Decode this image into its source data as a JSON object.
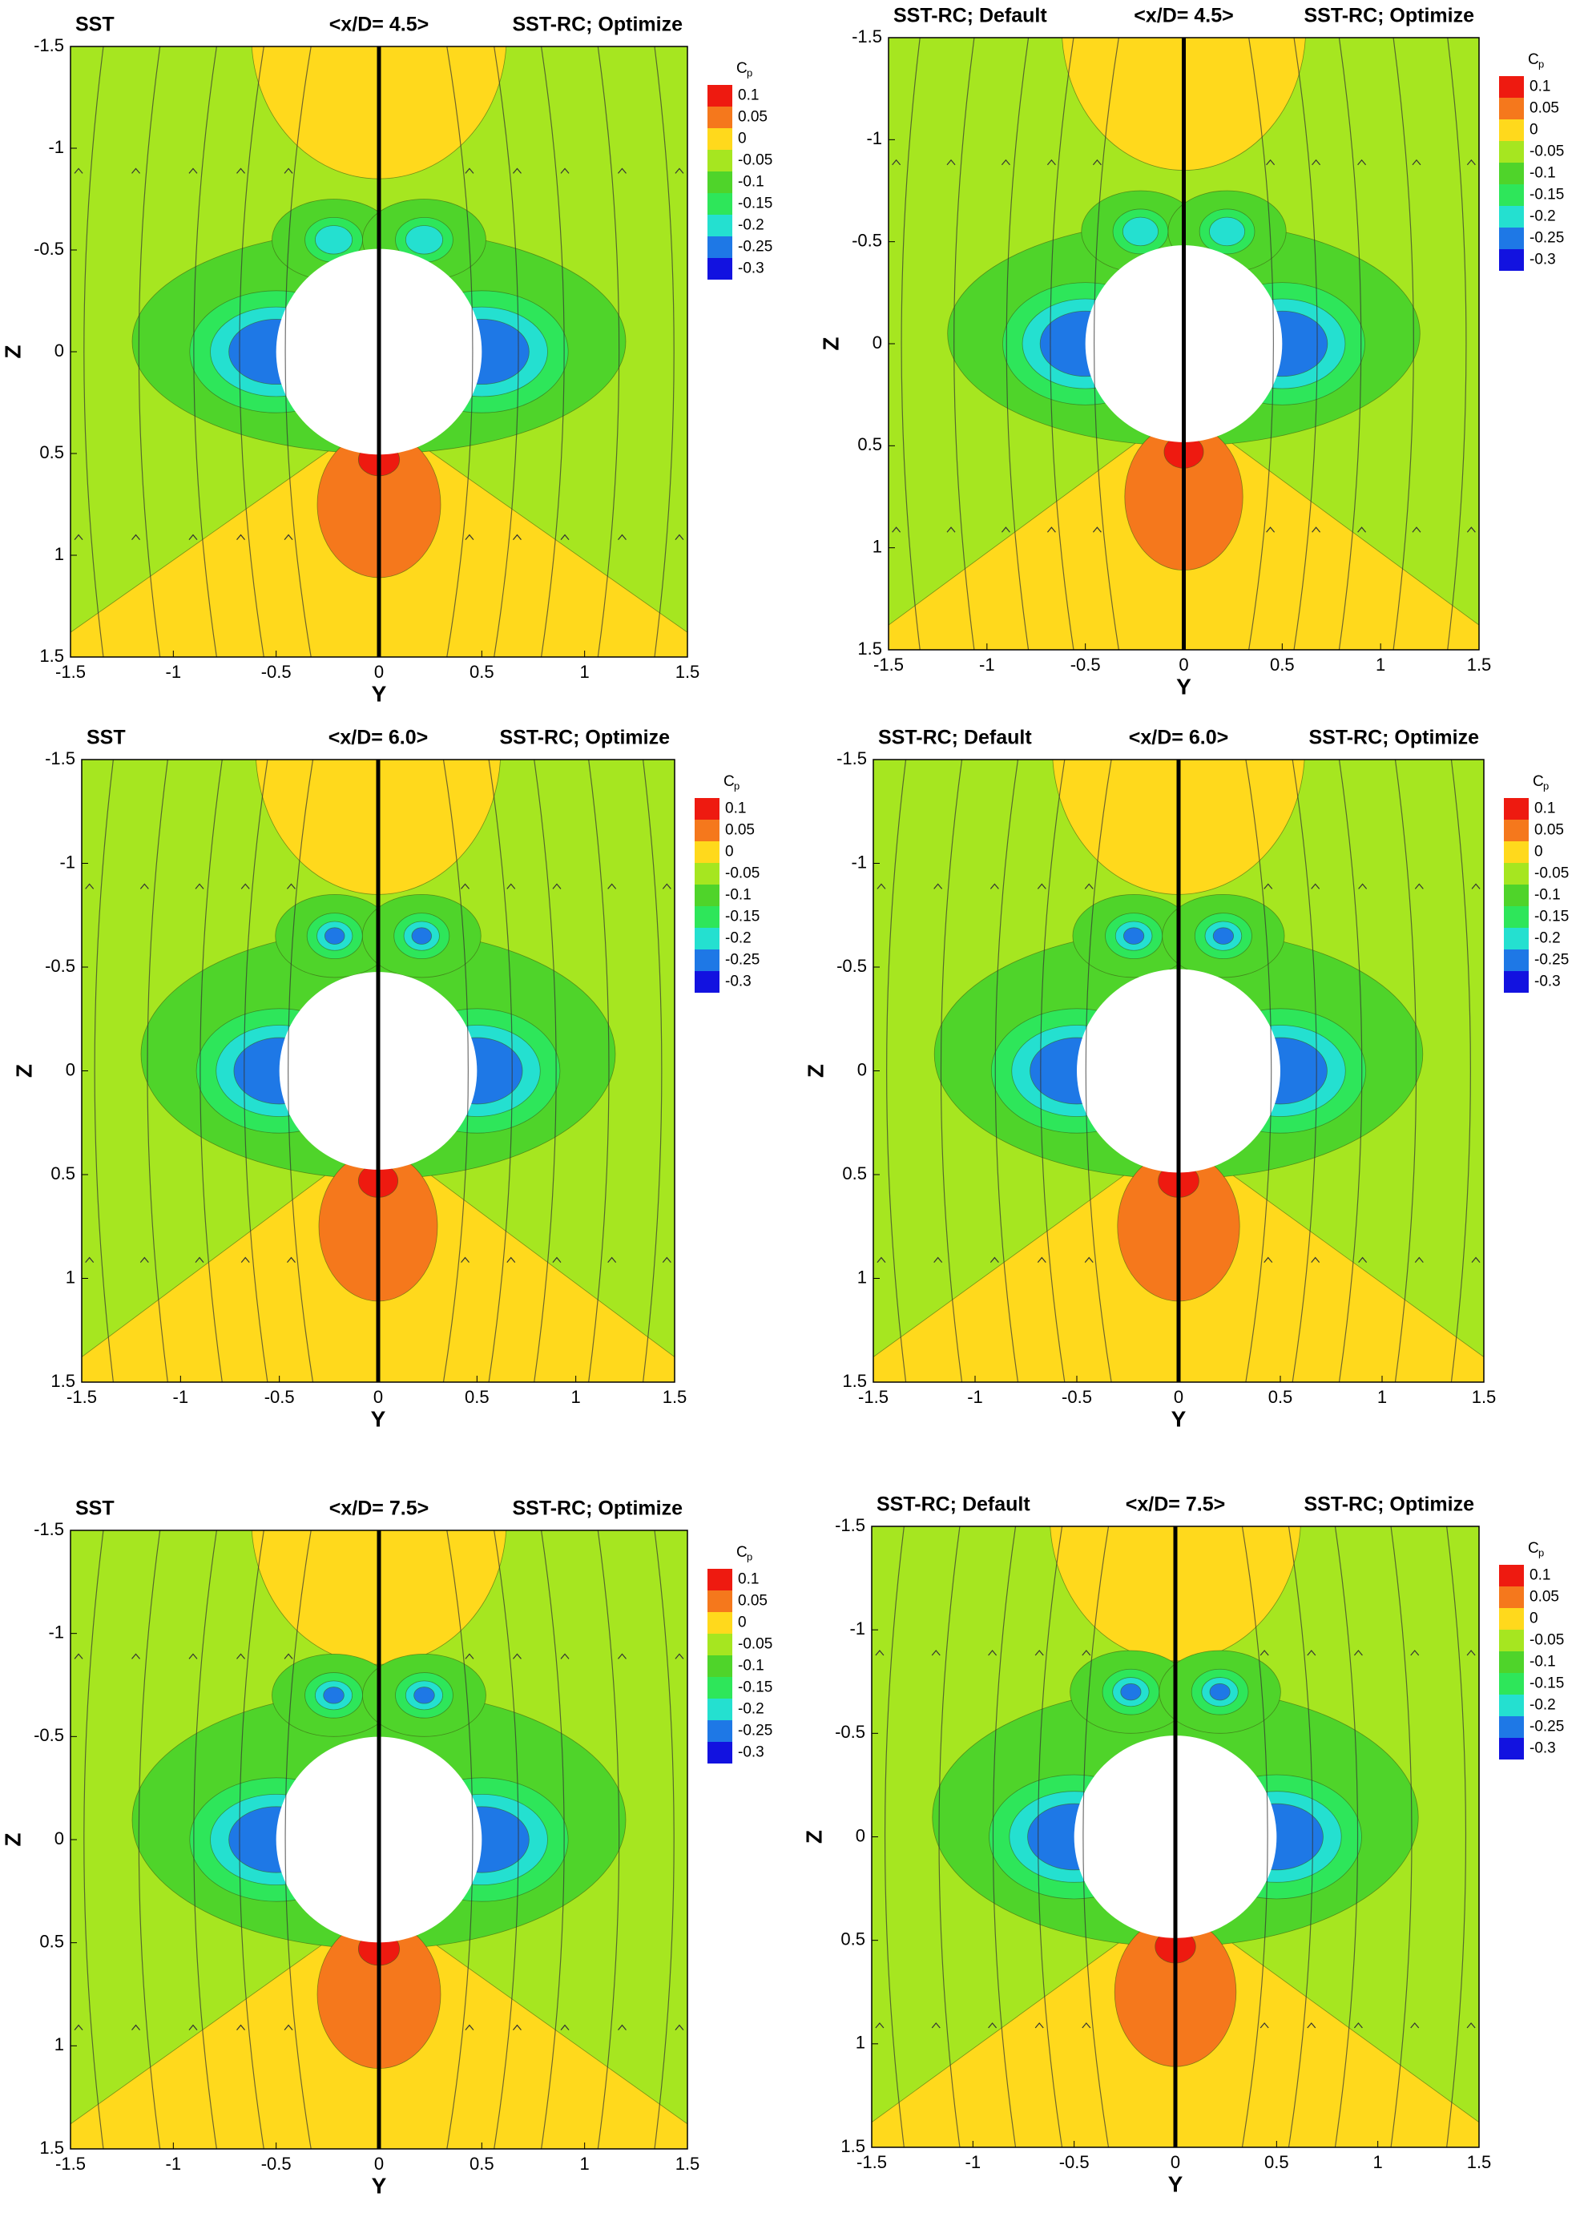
{
  "chart_data": [
    {
      "type": "contour",
      "title_left": "SST",
      "title": "<x/D= 4.5>",
      "title_right": "SST-RC; Optimize",
      "xlabel": "Y",
      "ylabel": "Z",
      "xlim": [
        -1.5,
        1.5
      ],
      "ylim": [
        1.5,
        -1.5
      ],
      "xticks": [
        -1.5,
        -1,
        -0.5,
        0,
        0.5,
        1,
        1.5
      ],
      "yticks": [
        -1.5,
        -1,
        -0.5,
        0,
        0.5,
        1,
        1.5
      ],
      "colorbar": {
        "label": "C",
        "label_sub": "p",
        "levels": [
          0.1,
          0.05,
          0,
          -0.05,
          -0.1,
          -0.15,
          -0.2,
          -0.25,
          -0.3
        ],
        "colors": [
          "#ee1a10",
          "#f5781c",
          "#ffd91c",
          "#a6e620",
          "#4fd42a",
          "#2ee65a",
          "#24e0d0",
          "#1e78e6",
          "#1212e0"
        ]
      }
    },
    {
      "type": "contour",
      "title_left": "SST-RC; Default",
      "title": "<x/D= 4.5>",
      "title_right": "SST-RC; Optimize",
      "xlabel": "Y",
      "ylabel": "Z",
      "xlim": [
        -1.5,
        1.5
      ],
      "ylim": [
        1.5,
        -1.5
      ],
      "xticks": [
        -1.5,
        -1,
        -0.5,
        0,
        0.5,
        1,
        1.5
      ],
      "yticks": [
        -1.5,
        -1,
        -0.5,
        0,
        0.5,
        1,
        1.5
      ],
      "colorbar": {
        "label": "C",
        "label_sub": "p",
        "levels": [
          0.1,
          0.05,
          0,
          -0.05,
          -0.1,
          -0.15,
          -0.2,
          -0.25,
          -0.3
        ],
        "colors": [
          "#ee1a10",
          "#f5781c",
          "#ffd91c",
          "#a6e620",
          "#4fd42a",
          "#2ee65a",
          "#24e0d0",
          "#1e78e6",
          "#1212e0"
        ]
      }
    },
    {
      "type": "contour",
      "title_left": "SST",
      "title": "<x/D= 6.0>",
      "title_right": "SST-RC; Optimize",
      "xlabel": "Y",
      "ylabel": "Z",
      "xlim": [
        -1.5,
        1.5
      ],
      "ylim": [
        1.5,
        -1.5
      ],
      "xticks": [
        -1.5,
        -1,
        -0.5,
        0,
        0.5,
        1,
        1.5
      ],
      "yticks": [
        -1.5,
        -1,
        -0.5,
        0,
        0.5,
        1,
        1.5
      ],
      "colorbar": {
        "label": "C",
        "label_sub": "p",
        "levels": [
          0.1,
          0.05,
          0,
          -0.05,
          -0.1,
          -0.15,
          -0.2,
          -0.25,
          -0.3
        ],
        "colors": [
          "#ee1a10",
          "#f5781c",
          "#ffd91c",
          "#a6e620",
          "#4fd42a",
          "#2ee65a",
          "#24e0d0",
          "#1e78e6",
          "#1212e0"
        ]
      }
    },
    {
      "type": "contour",
      "title_left": "SST-RC; Default",
      "title": "<x/D= 6.0>",
      "title_right": "SST-RC; Optimize",
      "xlabel": "Y",
      "ylabel": "Z",
      "xlim": [
        -1.5,
        1.5
      ],
      "ylim": [
        1.5,
        -1.5
      ],
      "xticks": [
        -1.5,
        -1,
        -0.5,
        0,
        0.5,
        1,
        1.5
      ],
      "yticks": [
        -1.5,
        -1,
        -0.5,
        0,
        0.5,
        1,
        1.5
      ],
      "colorbar": {
        "label": "C",
        "label_sub": "p",
        "levels": [
          0.1,
          0.05,
          0,
          -0.05,
          -0.1,
          -0.15,
          -0.2,
          -0.25,
          -0.3
        ],
        "colors": [
          "#ee1a10",
          "#f5781c",
          "#ffd91c",
          "#a6e620",
          "#4fd42a",
          "#2ee65a",
          "#24e0d0",
          "#1e78e6",
          "#1212e0"
        ]
      }
    },
    {
      "type": "contour",
      "title_left": "SST",
      "title": "<x/D= 7.5>",
      "title_right": "SST-RC; Optimize",
      "xlabel": "Y",
      "ylabel": "Z",
      "xlim": [
        -1.5,
        1.5
      ],
      "ylim": [
        1.5,
        -1.5
      ],
      "xticks": [
        -1.5,
        -1,
        -0.5,
        0,
        0.5,
        1,
        1.5
      ],
      "yticks": [
        -1.5,
        -1,
        -0.5,
        0,
        0.5,
        1,
        1.5
      ],
      "colorbar": {
        "label": "C",
        "label_sub": "p",
        "levels": [
          0.1,
          0.05,
          0,
          -0.05,
          -0.1,
          -0.15,
          -0.2,
          -0.25,
          -0.3
        ],
        "colors": [
          "#ee1a10",
          "#f5781c",
          "#ffd91c",
          "#a6e620",
          "#4fd42a",
          "#2ee65a",
          "#24e0d0",
          "#1e78e6",
          "#1212e0"
        ]
      }
    },
    {
      "type": "contour",
      "title_left": "SST-RC; Default",
      "title": "<x/D= 7.5>",
      "title_right": "SST-RC; Optimize",
      "xlabel": "Y",
      "ylabel": "Z",
      "xlim": [
        -1.5,
        1.5
      ],
      "ylim": [
        1.5,
        -1.5
      ],
      "xticks": [
        -1.5,
        -1,
        -0.5,
        0,
        0.5,
        1,
        1.5
      ],
      "yticks": [
        -1.5,
        -1,
        -0.5,
        0,
        0.5,
        1,
        1.5
      ],
      "colorbar": {
        "label": "C",
        "label_sub": "p",
        "levels": [
          0.1,
          0.05,
          0,
          -0.05,
          -0.1,
          -0.15,
          -0.2,
          -0.25,
          -0.3
        ],
        "colors": [
          "#ee1a10",
          "#f5781c",
          "#ffd91c",
          "#a6e620",
          "#4fd42a",
          "#2ee65a",
          "#24e0d0",
          "#1e78e6",
          "#1212e0"
        ]
      }
    }
  ]
}
